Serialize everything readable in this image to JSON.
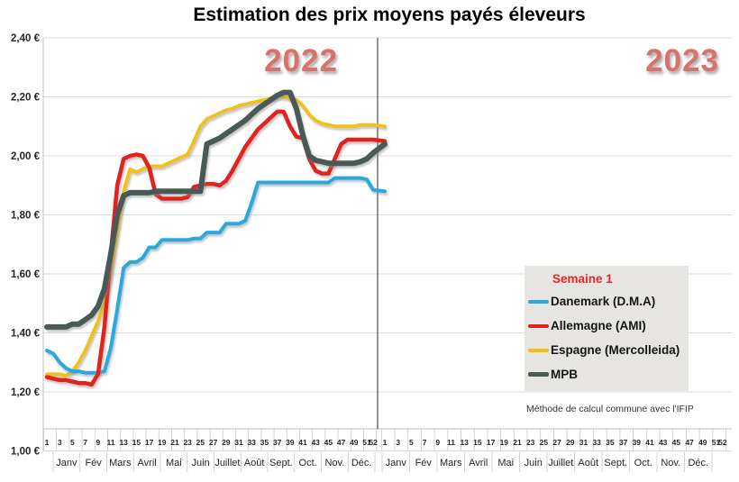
{
  "chart_data": {
    "type": "line",
    "title": "Estimation des prix moyens payés éleveurs",
    "period_labels": [
      "2022",
      "2023"
    ],
    "ylim": [
      1.0,
      2.4
    ],
    "ytick_step": 0.2,
    "y_tick_labels": [
      "2,40 €",
      "2,20 €",
      "2,00 €",
      "1,80 €",
      "1,60 €",
      "1,40 €",
      "1,20 €",
      "1,00 €"
    ],
    "x_week_tick_labels": [
      "1",
      "3",
      "5",
      "7",
      "9",
      "11",
      "13",
      "15",
      "17",
      "19",
      "21",
      "23",
      "25",
      "27",
      "29",
      "31",
      "33",
      "35",
      "37",
      "39",
      "41",
      "43",
      "45",
      "47",
      "49",
      "51",
      "52"
    ],
    "x_month_labels": [
      "Janv",
      "Fév",
      "Mars",
      "Avril",
      "Mai",
      "Juin",
      "Juillet",
      "Août",
      "Sept.",
      "Oct.",
      "Nov.",
      "Déc."
    ],
    "legend": {
      "title": "Semaine 1"
    },
    "footnote": "Méthode de calcul commune avec l'IFIP",
    "colors": {
      "grid": "#dcdcdc",
      "axis": "#bfbfbf",
      "tick": "#c8c8c8",
      "divider": "#595959",
      "year_label": "#dc716b",
      "legend_bg": "#e7e5e2",
      "legend_title": "#e32726"
    },
    "series": [
      {
        "name": "Danemark (D.M.A)",
        "color": "#29a8e0",
        "values_2022": [
          1.34,
          1.33,
          1.3,
          1.28,
          1.27,
          1.27,
          1.265,
          1.265,
          1.265,
          1.27,
          1.35,
          1.48,
          1.62,
          1.64,
          1.64,
          1.655,
          1.69,
          1.69,
          1.715,
          1.715,
          1.715,
          1.715,
          1.715,
          1.72,
          1.72,
          1.74,
          1.74,
          1.74,
          1.77,
          1.77,
          1.77,
          1.78,
          1.84,
          1.91,
          1.91,
          1.91,
          1.91,
          1.91,
          1.91,
          1.91,
          1.91,
          1.91,
          1.91,
          1.91,
          1.91,
          1.925,
          1.925,
          1.925,
          1.925,
          1.925,
          1.92,
          1.885
        ],
        "value_2023_week1": 1.88
      },
      {
        "name": "Allemagne (AMI)",
        "color": "#e2201f",
        "values_2022": [
          1.25,
          1.245,
          1.24,
          1.24,
          1.235,
          1.23,
          1.23,
          1.225,
          1.26,
          1.42,
          1.67,
          1.9,
          1.99,
          2.0,
          2.005,
          2.0,
          1.96,
          1.87,
          1.855,
          1.855,
          1.855,
          1.855,
          1.86,
          1.895,
          1.9,
          1.905,
          1.905,
          1.9,
          1.915,
          1.95,
          1.99,
          2.03,
          2.06,
          2.09,
          2.11,
          2.13,
          2.15,
          2.15,
          2.1,
          2.065,
          2.06,
          1.99,
          1.95,
          1.94,
          1.94,
          1.99,
          2.04,
          2.055,
          2.055,
          2.055,
          2.055,
          2.055
        ],
        "value_2023_week1": 2.05
      },
      {
        "name": "Espagne (Mercolleida)",
        "color": "#f3c012",
        "values_2022": [
          1.26,
          1.26,
          1.26,
          1.255,
          1.27,
          1.3,
          1.34,
          1.39,
          1.44,
          1.5,
          1.6,
          1.74,
          1.88,
          1.955,
          1.945,
          1.955,
          1.965,
          1.965,
          1.965,
          1.975,
          1.985,
          1.995,
          2.005,
          2.05,
          2.1,
          2.125,
          2.135,
          2.145,
          2.155,
          2.16,
          2.17,
          2.175,
          2.18,
          2.185,
          2.19,
          2.195,
          2.2,
          2.2,
          2.195,
          2.19,
          2.17,
          2.14,
          2.12,
          2.11,
          2.105,
          2.1,
          2.1,
          2.1,
          2.1,
          2.105,
          2.105,
          2.105
        ],
        "value_2023_week1": 2.1
      },
      {
        "name": "MPB",
        "color": "#485a56",
        "values_2022": [
          1.42,
          1.42,
          1.42,
          1.42,
          1.43,
          1.43,
          1.445,
          1.46,
          1.49,
          1.55,
          1.67,
          1.8,
          1.865,
          1.875,
          1.875,
          1.875,
          1.875,
          1.88,
          1.88,
          1.88,
          1.88,
          1.88,
          1.88,
          1.88,
          1.88,
          2.04,
          2.05,
          2.06,
          2.075,
          2.09,
          2.105,
          2.12,
          2.14,
          2.16,
          2.175,
          2.19,
          2.205,
          2.215,
          2.215,
          2.16,
          2.07,
          2.0,
          1.985,
          1.98,
          1.975,
          1.975,
          1.975,
          1.975,
          1.975,
          1.98,
          1.99,
          2.01
        ],
        "value_2023_week1": 2.04
      }
    ]
  }
}
